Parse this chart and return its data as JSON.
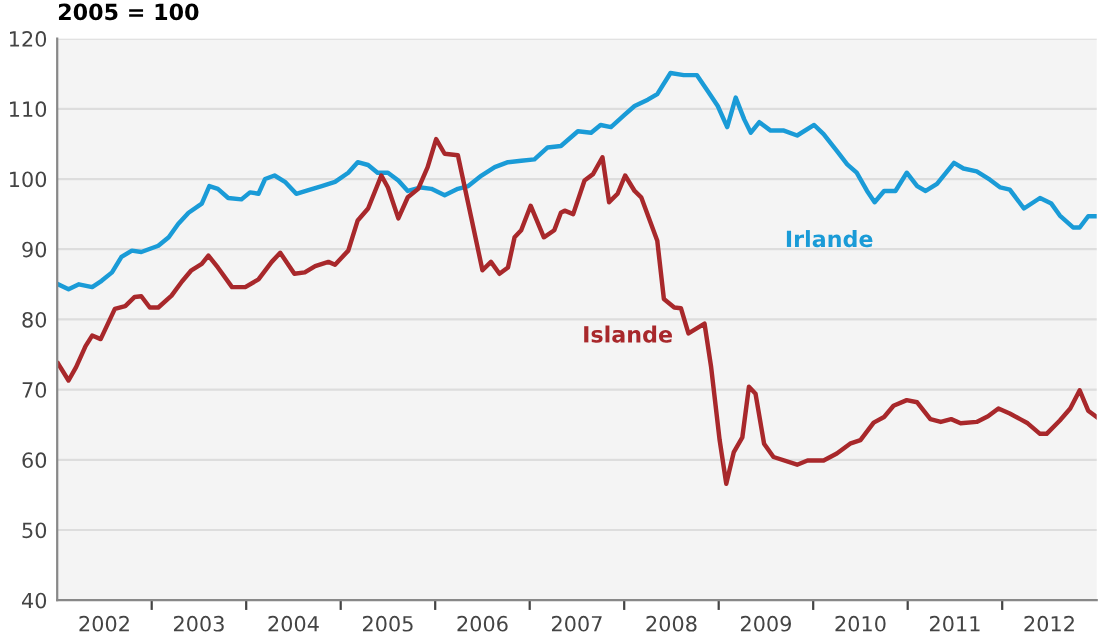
{
  "chart_data": {
    "type": "line",
    "ylabel": "2005 = 100",
    "xlim": [
      2002,
      2013
    ],
    "xticks": [
      {
        "value": 2003,
        "label": null
      },
      {
        "value": 2004,
        "label": null
      },
      {
        "value": 2005,
        "label": null
      },
      {
        "value": 2006,
        "label": null
      },
      {
        "value": 2007,
        "label": null
      },
      {
        "value": 2008,
        "label": null
      },
      {
        "value": 2009,
        "label": null
      },
      {
        "value": 2010,
        "label": null
      },
      {
        "value": 2011,
        "label": null
      },
      {
        "value": 2012,
        "label": null
      },
      {
        "value": 2002.5,
        "label": "2002"
      },
      {
        "value": 2003.5,
        "label": "2003"
      },
      {
        "value": 2004.5,
        "label": "2004"
      },
      {
        "value": 2005.5,
        "label": "2005"
      },
      {
        "value": 2006.5,
        "label": "2006"
      },
      {
        "value": 2007.5,
        "label": "2007"
      },
      {
        "value": 2008.5,
        "label": "2008"
      },
      {
        "value": 2009.5,
        "label": "2009"
      },
      {
        "value": 2010.5,
        "label": "2010"
      },
      {
        "value": 2011.5,
        "label": "2011"
      },
      {
        "value": 2012.5,
        "label": "2012"
      }
    ],
    "ylim": [
      40,
      120
    ],
    "yticks": [
      40,
      50,
      60,
      70,
      80,
      90,
      100,
      110,
      120
    ],
    "grid": "y",
    "legend": false,
    "marker": "none",
    "line_style": "solid",
    "series": [
      {
        "name": "Irlande",
        "color": "#1a9bd7",
        "x": [
          2002.01,
          2002.12,
          2002.23,
          2002.37,
          2002.47,
          2002.58,
          2002.68,
          2002.79,
          2002.89,
          2003.07,
          2003.18,
          2003.28,
          2003.39,
          2003.53,
          2003.61,
          2003.7,
          2003.81,
          2003.95,
          2004.04,
          2004.13,
          2004.2,
          2004.3,
          2004.41,
          2004.53,
          2004.65,
          2004.8,
          2004.94,
          2005.08,
          2005.18,
          2005.29,
          2005.39,
          2005.5,
          2005.61,
          2005.71,
          2005.85,
          2005.96,
          2006.1,
          2006.24,
          2006.35,
          2006.49,
          2006.63,
          2006.77,
          2006.91,
          2007.05,
          2007.19,
          2007.33,
          2007.51,
          2007.65,
          2007.75,
          2007.86,
          2008.0,
          2008.11,
          2008.25,
          2008.35,
          2008.49,
          2008.63,
          2008.77,
          2008.88,
          2008.99,
          2009.09,
          2009.18,
          2009.27,
          2009.34,
          2009.43,
          2009.55,
          2009.69,
          2009.83,
          2010.01,
          2010.11,
          2010.25,
          2010.36,
          2010.46,
          2010.57,
          2010.65,
          2010.75,
          2010.87,
          2010.99,
          2011.1,
          2011.19,
          2011.31,
          2011.49,
          2011.59,
          2011.73,
          2011.87,
          2011.98,
          2012.08,
          2012.23,
          2012.4,
          2012.52,
          2012.61,
          2012.75,
          2012.82,
          2012.91,
          2013.0
        ],
        "values": [
          85.0,
          84.3,
          85.0,
          84.6,
          85.5,
          86.7,
          88.9,
          89.8,
          89.6,
          90.5,
          91.7,
          93.6,
          95.2,
          96.5,
          99.0,
          98.6,
          97.3,
          97.1,
          98.1,
          97.9,
          100.0,
          100.5,
          99.6,
          97.9,
          98.4,
          99.0,
          99.6,
          100.9,
          102.4,
          102.0,
          100.9,
          100.9,
          99.8,
          98.3,
          98.8,
          98.6,
          97.7,
          98.6,
          99.0,
          100.5,
          101.7,
          102.4,
          102.6,
          102.8,
          104.5,
          104.7,
          106.8,
          106.6,
          107.7,
          107.4,
          109.1,
          110.4,
          111.3,
          112.1,
          115.1,
          114.8,
          114.8,
          112.6,
          110.4,
          107.4,
          111.6,
          108.5,
          106.6,
          108.1,
          106.9,
          106.9,
          106.2,
          107.7,
          106.4,
          104.0,
          102.1,
          100.9,
          98.3,
          96.7,
          98.3,
          98.3,
          100.9,
          99.0,
          98.3,
          99.3,
          102.3,
          101.5,
          101.1,
          99.9,
          98.8,
          98.5,
          95.8,
          97.3,
          96.5,
          94.8,
          93.1,
          93.1,
          94.7,
          94.7
        ]
      },
      {
        "name": "Islande",
        "color": "#a8282b",
        "x": [
          2002.01,
          2002.12,
          2002.2,
          2002.3,
          2002.37,
          2002.46,
          2002.61,
          2002.72,
          2002.82,
          2002.89,
          2002.98,
          2003.07,
          2003.21,
          2003.32,
          2003.42,
          2003.53,
          2003.6,
          2003.7,
          2003.85,
          2003.99,
          2004.13,
          2004.27,
          2004.36,
          2004.51,
          2004.62,
          2004.73,
          2004.87,
          2004.94,
          2005.08,
          2005.18,
          2005.29,
          2005.43,
          2005.5,
          2005.61,
          2005.71,
          2005.82,
          2005.92,
          2006.01,
          2006.1,
          2006.24,
          2006.38,
          2006.5,
          2006.59,
          2006.68,
          2006.77,
          2006.84,
          2006.91,
          2007.01,
          2007.15,
          2007.26,
          2007.33,
          2007.37,
          2007.46,
          2007.58,
          2007.67,
          2007.77,
          2007.84,
          2007.93,
          2008.01,
          2008.11,
          2008.18,
          2008.35,
          2008.42,
          2008.53,
          2008.6,
          2008.68,
          2008.85,
          2008.92,
          2009.01,
          2009.08,
          2009.16,
          2009.25,
          2009.32,
          2009.39,
          2009.48,
          2009.58,
          2009.83,
          2009.94,
          2010.11,
          2010.25,
          2010.39,
          2010.5,
          2010.64,
          2010.75,
          2010.85,
          2010.99,
          2011.1,
          2011.24,
          2011.35,
          2011.46,
          2011.56,
          2011.73,
          2011.85,
          2011.96,
          2012.08,
          2012.19,
          2012.27,
          2012.4,
          2012.47,
          2012.61,
          2012.72,
          2012.82,
          2012.91,
          2013.0
        ],
        "values": [
          73.7,
          71.3,
          73.2,
          76.2,
          77.7,
          77.2,
          81.5,
          81.9,
          83.2,
          83.3,
          81.7,
          81.7,
          83.4,
          85.4,
          87.0,
          87.9,
          89.1,
          87.4,
          84.6,
          84.6,
          85.7,
          88.2,
          89.5,
          86.5,
          86.7,
          87.6,
          88.2,
          87.8,
          89.8,
          94.1,
          95.8,
          100.5,
          98.8,
          94.4,
          97.4,
          98.6,
          101.7,
          105.7,
          103.6,
          103.4,
          94.6,
          87.0,
          88.2,
          86.5,
          87.4,
          91.7,
          92.7,
          96.2,
          91.7,
          92.7,
          95.2,
          95.5,
          95.0,
          99.8,
          100.7,
          103.1,
          96.7,
          97.9,
          100.5,
          98.3,
          97.4,
          91.2,
          82.9,
          81.7,
          81.6,
          78.0,
          79.4,
          73.2,
          62.8,
          56.6,
          61.1,
          63.2,
          70.4,
          69.4,
          62.3,
          60.4,
          59.3,
          59.9,
          59.9,
          60.9,
          62.3,
          62.8,
          65.3,
          66.1,
          67.7,
          68.5,
          68.2,
          65.8,
          65.4,
          65.8,
          65.2,
          65.4,
          66.2,
          67.3,
          66.6,
          65.8,
          65.2,
          63.7,
          63.7,
          65.6,
          67.3,
          69.9,
          67.0,
          66.1
        ]
      }
    ]
  }
}
